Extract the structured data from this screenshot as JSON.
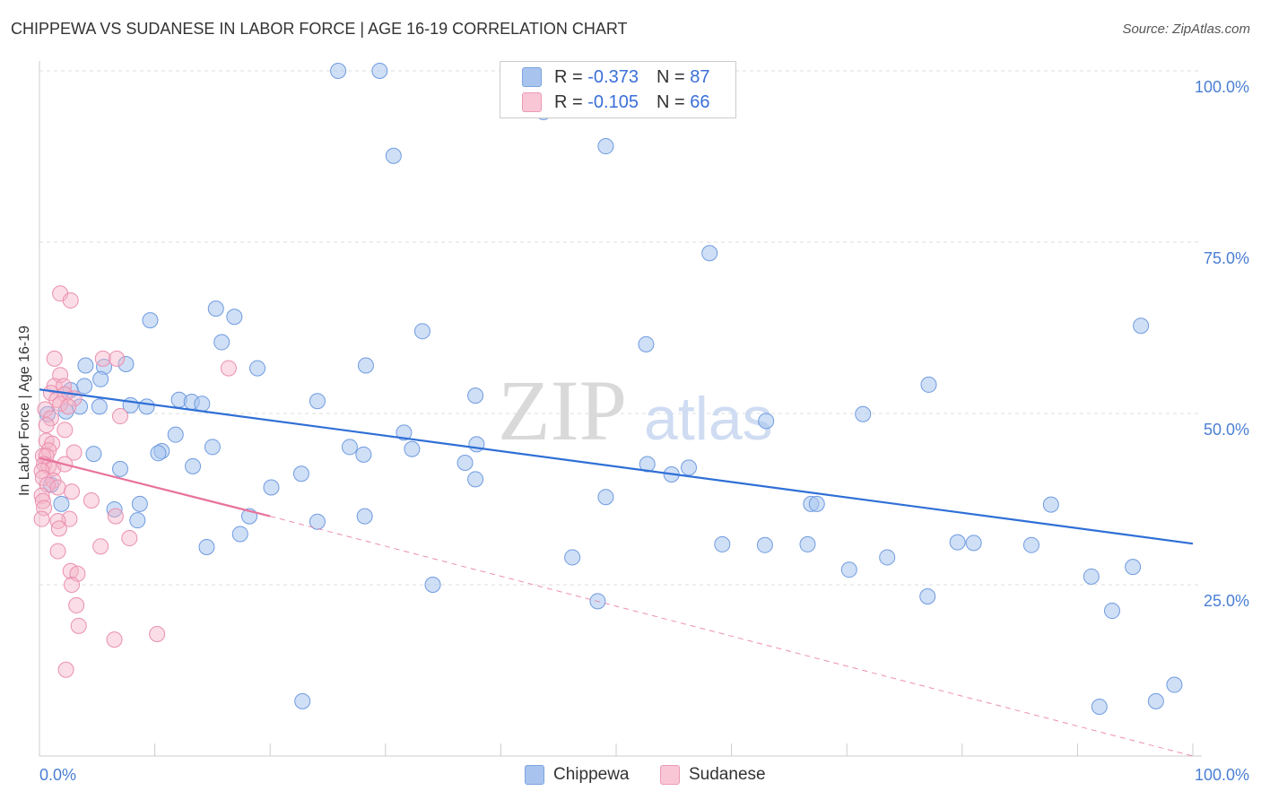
{
  "title": "CHIPPEWA VS SUDANESE IN LABOR FORCE | AGE 16-19 CORRELATION CHART",
  "source": "Source: ZipAtlas.com",
  "watermark": {
    "zip": "ZIP",
    "atlas": "atlas"
  },
  "legend": {
    "chippewa": {
      "r_label": "R =",
      "r_value": "-0.373",
      "n_label": "N =",
      "n_value": "87"
    },
    "sudanese": {
      "r_label": "R =",
      "r_value": "-0.105",
      "n_label": "N =",
      "n_value": "66"
    }
  },
  "bottom_legend": {
    "chippewa": "Chippewa",
    "sudanese": "Sudanese"
  },
  "chart_data": {
    "type": "scatter",
    "title": "CHIPPEWA VS SUDANESE IN LABOR FORCE | AGE 16-19 CORRELATION CHART",
    "xlabel": "",
    "ylabel": "In Labor Force | Age 16-19",
    "xlim": [
      0,
      100
    ],
    "ylim": [
      0,
      105
    ],
    "x_tick_labels": [
      "0.0%",
      "100.0%"
    ],
    "y_tick_labels": [
      "25.0%",
      "50.0%",
      "75.0%",
      "100.0%"
    ],
    "y_ticks": [
      25,
      50,
      75,
      100
    ],
    "grid": true,
    "colors": {
      "chippewa": "#a8c4ee",
      "chippewa_line": "#2f6fd6",
      "sudanese": "#f4b3c8",
      "sudanese_line": "#e8739c",
      "tick_text": "#4a7fd4"
    },
    "series": [
      {
        "name": "Chippewa",
        "trend": [
          [
            0,
            53.5
          ],
          [
            100,
            31
          ]
        ],
        "points": [
          [
            25.9,
            100
          ],
          [
            29.5,
            100
          ],
          [
            43.7,
            94
          ],
          [
            30.7,
            87.6
          ],
          [
            49.1,
            89
          ],
          [
            58.1,
            73.4
          ],
          [
            9.6,
            63.6
          ],
          [
            15.3,
            65.3
          ],
          [
            16.9,
            64.1
          ],
          [
            33.2,
            62
          ],
          [
            52.6,
            60.1
          ],
          [
            95.5,
            62.8
          ],
          [
            15.8,
            60.4
          ],
          [
            4,
            57
          ],
          [
            5.6,
            56.8
          ],
          [
            7.5,
            57.2
          ],
          [
            18.9,
            56.6
          ],
          [
            28.3,
            57
          ],
          [
            5.3,
            55
          ],
          [
            3.9,
            54
          ],
          [
            2.7,
            53.4
          ],
          [
            12.1,
            52
          ],
          [
            13.2,
            51.7
          ],
          [
            14.1,
            51.4
          ],
          [
            7.9,
            51.2
          ],
          [
            9.3,
            51
          ],
          [
            24.1,
            51.8
          ],
          [
            37.8,
            52.6
          ],
          [
            5.2,
            51
          ],
          [
            3.5,
            51
          ],
          [
            2.3,
            50.3
          ],
          [
            0.7,
            49.9
          ],
          [
            77.1,
            54.2
          ],
          [
            71.4,
            49.9
          ],
          [
            63,
            48.9
          ],
          [
            31.6,
            47.2
          ],
          [
            11.8,
            46.9
          ],
          [
            15,
            45.1
          ],
          [
            10.6,
            44.5
          ],
          [
            10.3,
            44.2
          ],
          [
            26.9,
            45.1
          ],
          [
            32.3,
            44.8
          ],
          [
            28.1,
            44
          ],
          [
            4.7,
            44.1
          ],
          [
            37.9,
            45.5
          ],
          [
            36.9,
            42.8
          ],
          [
            13.3,
            42.3
          ],
          [
            52.7,
            42.6
          ],
          [
            56.3,
            42.1
          ],
          [
            7,
            41.9
          ],
          [
            22.7,
            41.2
          ],
          [
            54.8,
            41.1
          ],
          [
            1,
            39.6
          ],
          [
            20.1,
            39.2
          ],
          [
            37.8,
            40.4
          ],
          [
            8.7,
            36.8
          ],
          [
            6.5,
            36
          ],
          [
            49.1,
            37.8
          ],
          [
            66.9,
            36.8
          ],
          [
            67.4,
            36.8
          ],
          [
            87.7,
            36.7
          ],
          [
            1.9,
            36.8
          ],
          [
            18.2,
            35
          ],
          [
            8.5,
            34.4
          ],
          [
            24.1,
            34.2
          ],
          [
            28.2,
            35
          ],
          [
            17.4,
            32.4
          ],
          [
            14.5,
            30.5
          ],
          [
            59.2,
            30.9
          ],
          [
            62.9,
            30.8
          ],
          [
            66.6,
            30.9
          ],
          [
            79.6,
            31.2
          ],
          [
            81,
            31.1
          ],
          [
            86,
            30.8
          ],
          [
            46.2,
            29
          ],
          [
            73.5,
            29
          ],
          [
            70.2,
            27.2
          ],
          [
            94.8,
            27.6
          ],
          [
            91.2,
            26.2
          ],
          [
            34.1,
            25
          ],
          [
            48.4,
            22.6
          ],
          [
            77,
            23.3
          ],
          [
            93,
            21.2
          ],
          [
            98.4,
            10.4
          ],
          [
            22.8,
            8
          ],
          [
            91.9,
            7.2
          ],
          [
            96.8,
            8
          ]
        ]
      },
      {
        "name": "Sudanese",
        "trend": [
          [
            0,
            43.5
          ],
          [
            20,
            35
          ]
        ],
        "trend_dashed": [
          [
            20,
            35
          ],
          [
            100,
            0
          ]
        ],
        "points": [
          [
            1.8,
            67.5
          ],
          [
            2.7,
            66.5
          ],
          [
            5.5,
            58
          ],
          [
            1.3,
            58
          ],
          [
            6.7,
            58
          ],
          [
            1.8,
            55.6
          ],
          [
            1.3,
            54
          ],
          [
            2.1,
            54
          ],
          [
            1,
            53
          ],
          [
            2.2,
            52.8
          ],
          [
            1.5,
            52
          ],
          [
            3,
            52.2
          ],
          [
            1.8,
            51.4
          ],
          [
            2.5,
            51
          ],
          [
            0.5,
            50.6
          ],
          [
            7,
            49.6
          ],
          [
            1,
            49.3
          ],
          [
            0.6,
            48.3
          ],
          [
            2.2,
            47.6
          ],
          [
            0.6,
            46
          ],
          [
            1.1,
            45.6
          ],
          [
            0.8,
            44.6
          ],
          [
            0.3,
            43.8
          ],
          [
            0.6,
            43.8
          ],
          [
            3,
            44.3
          ],
          [
            0.4,
            42.6
          ],
          [
            0.8,
            42.3
          ],
          [
            1.2,
            42
          ],
          [
            2.2,
            42.6
          ],
          [
            0.2,
            41.6
          ],
          [
            0.3,
            40.6
          ],
          [
            1.2,
            40.2
          ],
          [
            0.7,
            39.6
          ],
          [
            1.6,
            39.2
          ],
          [
            2.8,
            38.6
          ],
          [
            0.2,
            38
          ],
          [
            0.3,
            37.2
          ],
          [
            4.5,
            37.3
          ],
          [
            0.4,
            36.2
          ],
          [
            6.6,
            35
          ],
          [
            2.6,
            34.6
          ],
          [
            1.6,
            34.3
          ],
          [
            1.7,
            33.2
          ],
          [
            7.8,
            31.8
          ],
          [
            5.3,
            30.6
          ],
          [
            1.6,
            29.9
          ],
          [
            2.7,
            27
          ],
          [
            3.3,
            26.6
          ],
          [
            2.8,
            25
          ],
          [
            3.2,
            22
          ],
          [
            3.4,
            19
          ],
          [
            6.5,
            17
          ],
          [
            10.2,
            17.8
          ],
          [
            2.3,
            12.6
          ],
          [
            0.2,
            34.6
          ],
          [
            16.4,
            56.6
          ]
        ]
      }
    ]
  }
}
